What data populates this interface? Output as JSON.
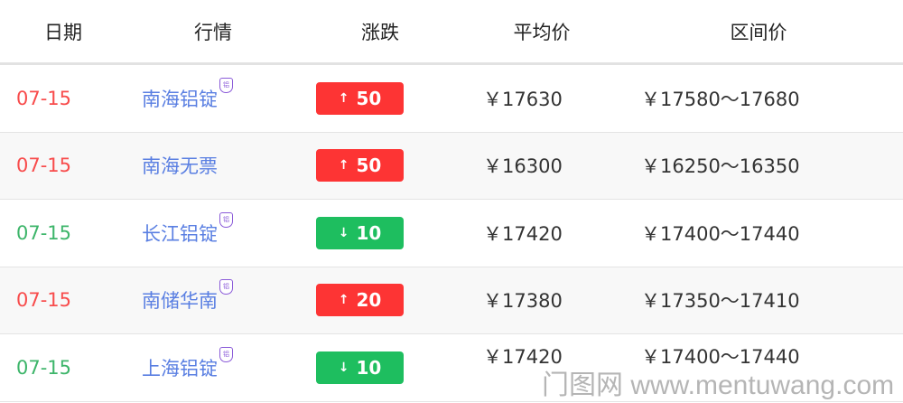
{
  "header": {
    "date": "日期",
    "market": "行情",
    "change": "涨跌",
    "avg": "平均价",
    "range": "区间价"
  },
  "colors": {
    "up": "#fd3434",
    "down": "#1ebe5f",
    "name": "#5a7fe2",
    "date_up": "#f84c4c",
    "date_down": "#3db56a"
  },
  "rows": [
    {
      "date": "07-15",
      "name": "南海铝锭",
      "tag": true,
      "tag_label": "铝",
      "dir": "up",
      "arrow": "↑",
      "change": "50",
      "avg": "￥17630",
      "range": "￥17580～17680"
    },
    {
      "date": "07-15",
      "name": "南海无票",
      "tag": false,
      "tag_label": "",
      "dir": "up",
      "arrow": "↑",
      "change": "50",
      "avg": "￥16300",
      "range": "￥16250～16350"
    },
    {
      "date": "07-15",
      "name": "长江铝锭",
      "tag": true,
      "tag_label": "铝",
      "dir": "down",
      "arrow": "↓",
      "change": "10",
      "avg": "￥17420",
      "range": "￥17400～17440"
    },
    {
      "date": "07-15",
      "name": "南储华南",
      "tag": true,
      "tag_label": "铝",
      "dir": "up",
      "arrow": "↑",
      "change": "20",
      "avg": "￥17380",
      "range": "￥17350～17410"
    },
    {
      "date": "07-15",
      "name": "上海铝锭",
      "tag": true,
      "tag_label": "铝",
      "dir": "down",
      "arrow": "↓",
      "change": "10",
      "avg": "￥17420",
      "range": "￥17400～17440"
    }
  ],
  "watermark": "门图网 www.mentuwang.com"
}
